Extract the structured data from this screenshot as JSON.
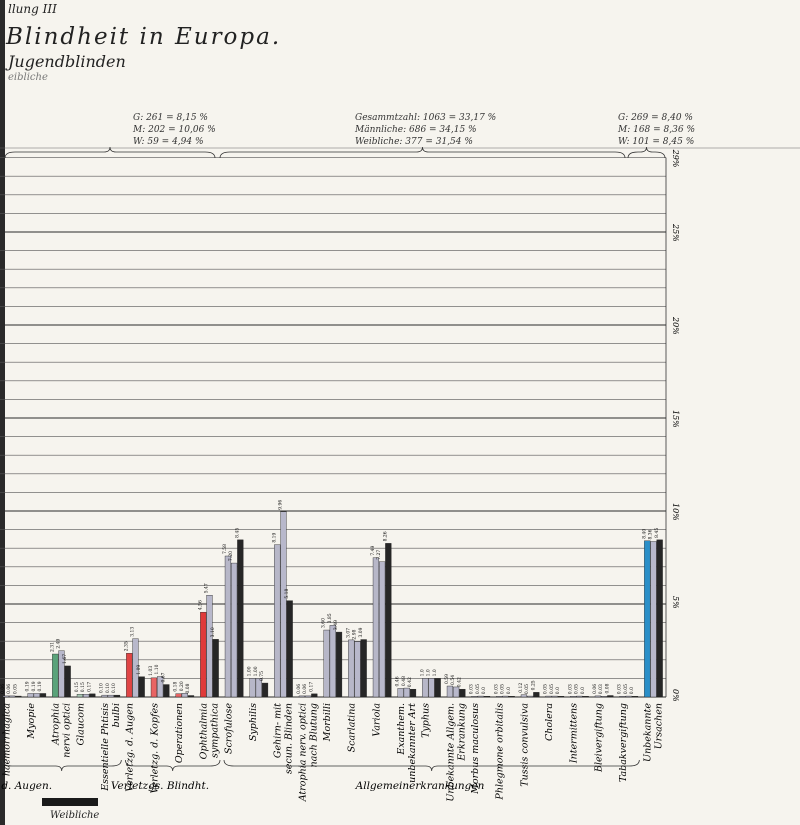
{
  "header": {
    "line1": "llung III",
    "line2": "Blindheit   in   Europa.",
    "line3": "Jugendblinden",
    "line4": "eibliche"
  },
  "stats": {
    "left": [
      "G: 261 = 8,15 %",
      "M: 202 = 10,06 %",
      "W:  59 = 4,94 %"
    ],
    "middle": [
      "Gesammtzahl: 1063 = 33,17 %",
      "Männliche:  686 = 34,15 %",
      "Weibliche:  377 = 31,54 %"
    ],
    "right": [
      "G: 269 = 8,40 %",
      "M: 168 = 8,36 %",
      "W: 101 = 8,45 %"
    ]
  },
  "groups": [
    "n. d. Augen.",
    "Verletzgs. Blindht.",
    "Allgemeinerkrankungen"
  ],
  "legend": {
    "label": "Weibliche"
  },
  "colors": {
    "gray": "#b8b8cb",
    "black": "#262626",
    "paper": "#f6f4ee"
  },
  "chart_data": {
    "type": "bar",
    "yunit": "%",
    "ylim": [
      0,
      29
    ],
    "yticks": [
      "0%",
      "5%",
      "10%",
      "15%",
      "20%",
      "25%",
      "29%"
    ],
    "grid": true,
    "categories": [
      {
        "label": [
          "haemorrhagica"
        ],
        "color": "#b7b7c8",
        "values": [
          0.06,
          0.06,
          0.05
        ],
        "vlabels": [
          "0.06",
          "0.06",
          "0.05"
        ]
      },
      {
        "label": [
          "Myopie"
        ],
        "color": "#b7b7c8",
        "values": [
          0.19,
          0.19,
          0.19
        ],
        "vlabels": [
          "0.19",
          "0.19",
          "0.19"
        ]
      },
      {
        "label": [
          "Atrophia",
          "nervi optici"
        ],
        "color": "#5aa37a",
        "values": [
          2.31,
          2.49,
          1.67
        ],
        "vlabels": [
          "2.31",
          "2.49",
          "1.67"
        ]
      },
      {
        "label": [
          "Glaucom"
        ],
        "color": "#a8c8b4",
        "values": [
          0.15,
          0.15,
          0.17
        ],
        "vlabels": [
          "0.15",
          "0.15",
          "0.17"
        ]
      },
      {
        "label": [
          "Essentielle Phtisis",
          "bulbi"
        ],
        "color": "#b7b7c8",
        "values": [
          0.1,
          0.1,
          0.1
        ],
        "vlabels": [
          "0.10",
          "0.10",
          "0.10"
        ]
      },
      {
        "label": [
          "Verletzg. d. Augen"
        ],
        "color": "#e04545",
        "values": [
          2.35,
          3.13,
          1.09
        ],
        "vlabels": [
          "2.35",
          "3.13",
          "1.09"
        ]
      },
      {
        "label": [
          "Verletzg. d. Kopfes"
        ],
        "color": "#e86464",
        "values": [
          1.03,
          1.1,
          0.67
        ],
        "vlabels": [
          "1.03",
          "1.10",
          "0.67"
        ]
      },
      {
        "label": [
          "Operationen"
        ],
        "color": "#e86464",
        "values": [
          0.18,
          0.2,
          0.08
        ],
        "vlabels": [
          "0.18",
          "0.20",
          "0.08"
        ]
      },
      {
        "label": [
          "Ophthalmia",
          "sympathica"
        ],
        "color": "#e03a3a",
        "values": [
          4.56,
          5.47,
          3.1
        ],
        "vlabels": [
          "4.56",
          "5.47",
          "3.10"
        ]
      },
      {
        "label": [
          "Scrofulose"
        ],
        "color": "#b7b7c8",
        "values": [
          7.58,
          7.2,
          8.45
        ],
        "vlabels": [
          "7.58",
          "7.20",
          "8.45"
        ]
      },
      {
        "label": [
          "Syphilis"
        ],
        "color": "#b7b7c8",
        "values": [
          1.0,
          1.0,
          0.75
        ],
        "vlabels": [
          "1.00",
          "1.00",
          "0.75"
        ]
      },
      {
        "label": [
          "Gehirn- mit",
          "secun. Blinden"
        ],
        "color": "#b7b7c8",
        "values": [
          8.19,
          9.96,
          5.18
        ],
        "vlabels": [
          "8.19",
          "9.96",
          "5.18"
        ]
      },
      {
        "label": [
          "Atrophia nerv. optici",
          "nach Blutung"
        ],
        "color": "#b7b7c8",
        "values": [
          0.06,
          0.06,
          0.17
        ],
        "vlabels": [
          "0.06",
          "0.06",
          "0.17"
        ]
      },
      {
        "label": [
          "Morbilli"
        ],
        "color": "#b7b7c8",
        "values": [
          3.6,
          3.85,
          3.49
        ],
        "vlabels": [
          "3.60",
          "3.85",
          "3.49"
        ]
      },
      {
        "label": [
          "Scarlatina"
        ],
        "color": "#b7b7c8",
        "values": [
          3.07,
          2.98,
          3.09
        ],
        "vlabels": [
          "3.07",
          "2.98",
          "3.09"
        ]
      },
      {
        "label": [
          "Variola"
        ],
        "color": "#b7b7c8",
        "values": [
          7.49,
          7.27,
          8.26
        ],
        "vlabels": [
          "7.49",
          "7.27",
          "8.26"
        ]
      },
      {
        "label": [
          "Exanthem.",
          "unbekannter Art"
        ],
        "color": "#b7b7c8",
        "values": [
          0.46,
          0.48,
          0.42
        ],
        "vlabels": [
          "0.46",
          "0.48",
          "0.42"
        ]
      },
      {
        "label": [
          "Typhus"
        ],
        "color": "#b7b7c8",
        "values": [
          1.0,
          1.0,
          1.0
        ],
        "vlabels": [
          "1.0",
          "1.0",
          "1.0"
        ]
      },
      {
        "label": [
          "Unbekannte Allgem.",
          "Erkrankung"
        ],
        "color": "#b7b7c8",
        "values": [
          0.59,
          0.54,
          0.42
        ],
        "vlabels": [
          "0.59",
          "0.54",
          "0.42"
        ]
      },
      {
        "label": [
          "Morbus maculosus"
        ],
        "color": "#b7b7c8",
        "values": [
          0.03,
          0.05,
          0.0
        ],
        "vlabels": [
          "0.03",
          "0.05",
          "0.0"
        ]
      },
      {
        "label": [
          "Phlegmone orbitalis"
        ],
        "color": "#b7b7c8",
        "values": [
          0.03,
          0.05,
          0.0
        ],
        "vlabels": [
          "0.03",
          "0.05",
          "0.0"
        ]
      },
      {
        "label": [
          "Tussis convulsiva"
        ],
        "color": "#b7b7c8",
        "values": [
          0.12,
          0.05,
          0.25
        ],
        "vlabels": [
          "0.12",
          "0.05",
          "0.25"
        ]
      },
      {
        "label": [
          "Cholera"
        ],
        "color": "#b7b7c8",
        "values": [
          0.05,
          0.05,
          0.0
        ],
        "vlabels": [
          "0.05",
          "0.05",
          "0.0"
        ]
      },
      {
        "label": [
          "Intermittens"
        ],
        "color": "#b7b7c8",
        "values": [
          0.03,
          0.05,
          0.0
        ],
        "vlabels": [
          "0.03",
          "0.05",
          "0.0"
        ]
      },
      {
        "label": [
          "Bleivergiftung"
        ],
        "color": "#b7b7c8",
        "values": [
          0.06,
          0.03,
          0.08
        ],
        "vlabels": [
          "0.06",
          "0.03",
          "0.08"
        ]
      },
      {
        "label": [
          "Tabakvergiftung"
        ],
        "color": "#b7b7c8",
        "values": [
          0.03,
          0.05,
          0.0
        ],
        "vlabels": [
          "0.03",
          "0.05",
          "0.0"
        ]
      },
      {
        "label": [
          "Unbekannte",
          "Ursachen"
        ],
        "color": "#2a8fc8",
        "values": [
          8.4,
          8.36,
          8.45
        ],
        "vlabels": [
          "8.40",
          "8.36",
          "8.45"
        ]
      }
    ]
  }
}
